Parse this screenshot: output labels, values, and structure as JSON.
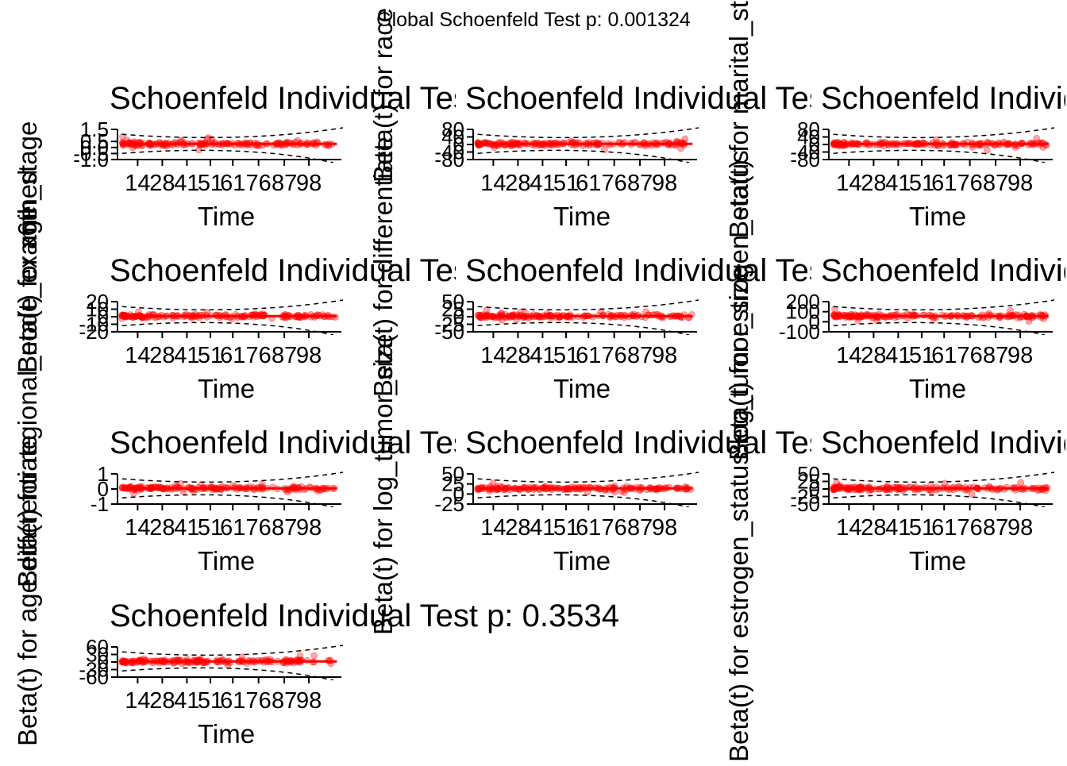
{
  "global_title": "Global Schoenfeld Test p: 0.001324",
  "colors": {
    "points": "#ff0000",
    "lines": "#000000",
    "background": "#ffffff"
  },
  "chart_data": [
    {
      "type": "scatter",
      "title": "Schoenfeld Individual Test p: ",
      "ylabel": "Beta(t) for age",
      "xlabel": "Time",
      "x_tick_labels": [
        "14",
        "28",
        "41",
        "51",
        "61",
        "76",
        "87",
        "98"
      ],
      "y_tick_labels": [
        "1.5",
        "0.5",
        "0.0",
        "-0.5",
        "-1.0"
      ],
      "y_tick_values": [
        1.5,
        0.5,
        0.0,
        -0.5,
        -1.0
      ],
      "ylim": [
        -1.0,
        1.5
      ],
      "series": [
        {
          "values": []
        }
      ]
    },
    {
      "type": "scatter",
      "title": "Schoenfeld Individual Test p: ",
      "ylabel": "Beta(t) for race",
      "xlabel": "Time",
      "x_tick_labels": [
        "14",
        "28",
        "41",
        "51",
        "61",
        "76",
        "87",
        "98"
      ],
      "y_tick_labels": [
        "80",
        "40",
        "0",
        "-40",
        "-80"
      ],
      "y_tick_values": [
        80,
        40,
        0,
        -40,
        -80
      ],
      "ylim": [
        -80,
        80
      ],
      "series": [
        {
          "values": []
        }
      ]
    },
    {
      "type": "scatter",
      "title": "Schoenfeld Individual Test p: ",
      "ylabel": "Beta(t) for marital_status",
      "xlabel": "Time",
      "x_tick_labels": [
        "14",
        "28",
        "41",
        "51",
        "61",
        "76",
        "87",
        "98"
      ],
      "y_tick_labels": [
        "80",
        "40",
        "0",
        "-40",
        "-80"
      ],
      "y_tick_values": [
        80,
        40,
        0,
        -40,
        -80
      ],
      "ylim": [
        -80,
        80
      ],
      "series": [
        {
          "values": []
        }
      ]
    },
    {
      "type": "scatter",
      "title": "Schoenfeld Individual Test p: ",
      "ylabel": "Beta(t) for x6th_stage",
      "xlabel": "Time",
      "x_tick_labels": [
        "14",
        "28",
        "41",
        "51",
        "61",
        "76",
        "87",
        "98"
      ],
      "y_tick_labels": [
        "20",
        "10",
        "0",
        "-10",
        "-20"
      ],
      "y_tick_values": [
        20,
        10,
        0,
        -10,
        -20
      ],
      "ylim": [
        -20,
        20
      ],
      "series": [
        {
          "values": []
        }
      ]
    },
    {
      "type": "scatter",
      "title": "Schoenfeld Individual Test p: ",
      "ylabel": "Beta(t) for differentiate",
      "xlabel": "Time",
      "x_tick_labels": [
        "14",
        "28",
        "41",
        "51",
        "61",
        "76",
        "87",
        "98"
      ],
      "y_tick_labels": [
        "50",
        "25",
        "0",
        "-25",
        "-50"
      ],
      "y_tick_values": [
        50,
        25,
        0,
        -25,
        -50
      ],
      "ylim": [
        -50,
        50
      ],
      "series": [
        {
          "values": []
        }
      ]
    },
    {
      "type": "scatter",
      "title": "Schoenfeld Individual Test p: ",
      "ylabel": "Beta(t) for estrogen_status",
      "xlabel": "Time",
      "x_tick_labels": [
        "14",
        "28",
        "41",
        "51",
        "61",
        "76",
        "87",
        "98"
      ],
      "y_tick_labels": [
        "200",
        "100",
        "0",
        "-100"
      ],
      "y_tick_values": [
        200,
        100,
        0,
        -100
      ],
      "ylim": [
        -100,
        200
      ],
      "series": [
        {
          "values": []
        }
      ]
    },
    {
      "type": "scatter",
      "title": "Schoenfeld Individual Test p: ",
      "ylabel": "Beta(t) for regional_node_examined",
      "xlabel": "Time",
      "x_tick_labels": [
        "14",
        "28",
        "41",
        "51",
        "61",
        "76",
        "87",
        "98"
      ],
      "y_tick_labels": [
        "1",
        "0",
        "-1"
      ],
      "y_tick_values": [
        1,
        0,
        -1
      ],
      "ylim": [
        -1,
        1
      ],
      "series": [
        {
          "values": []
        }
      ]
    },
    {
      "type": "scatter",
      "title": "Schoenfeld Individual Test p: ",
      "ylabel": "Beta(t) for log_tumor_size",
      "xlabel": "Time",
      "x_tick_labels": [
        "14",
        "28",
        "41",
        "51",
        "61",
        "76",
        "87",
        "98"
      ],
      "y_tick_labels": [
        "50",
        "25",
        "0",
        "-25"
      ],
      "y_tick_values": [
        50,
        25,
        0,
        -25
      ],
      "ylim": [
        -25,
        50
      ],
      "series": [
        {
          "values": []
        }
      ]
    },
    {
      "type": "scatter",
      "title": "Schoenfeld Individual Test p: ",
      "ylabel": "Beta(t) for estrogen_status:log_tumor_size",
      "xlabel": "Time",
      "x_tick_labels": [
        "14",
        "28",
        "41",
        "51",
        "61",
        "76",
        "87",
        "98"
      ],
      "y_tick_labels": [
        "50",
        "25",
        "0",
        "-25",
        "-50"
      ],
      "y_tick_values": [
        50,
        25,
        0,
        -25,
        -50
      ],
      "ylim": [
        -50,
        50
      ],
      "series": [
        {
          "values": []
        }
      ]
    },
    {
      "type": "scatter",
      "title": "Schoenfeld Individual Test p: 0.3534",
      "ylabel": "Beta(t) for age:differentiate",
      "xlabel": "Time",
      "x_tick_labels": [
        "14",
        "28",
        "41",
        "51",
        "61",
        "76",
        "87",
        "98"
      ],
      "y_tick_labels": [
        "60",
        "30",
        "0",
        "-30",
        "-60"
      ],
      "y_tick_values": [
        60,
        30,
        0,
        -30,
        -60
      ],
      "ylim": [
        -60,
        60
      ],
      "series": [
        {
          "values": []
        }
      ]
    }
  ]
}
